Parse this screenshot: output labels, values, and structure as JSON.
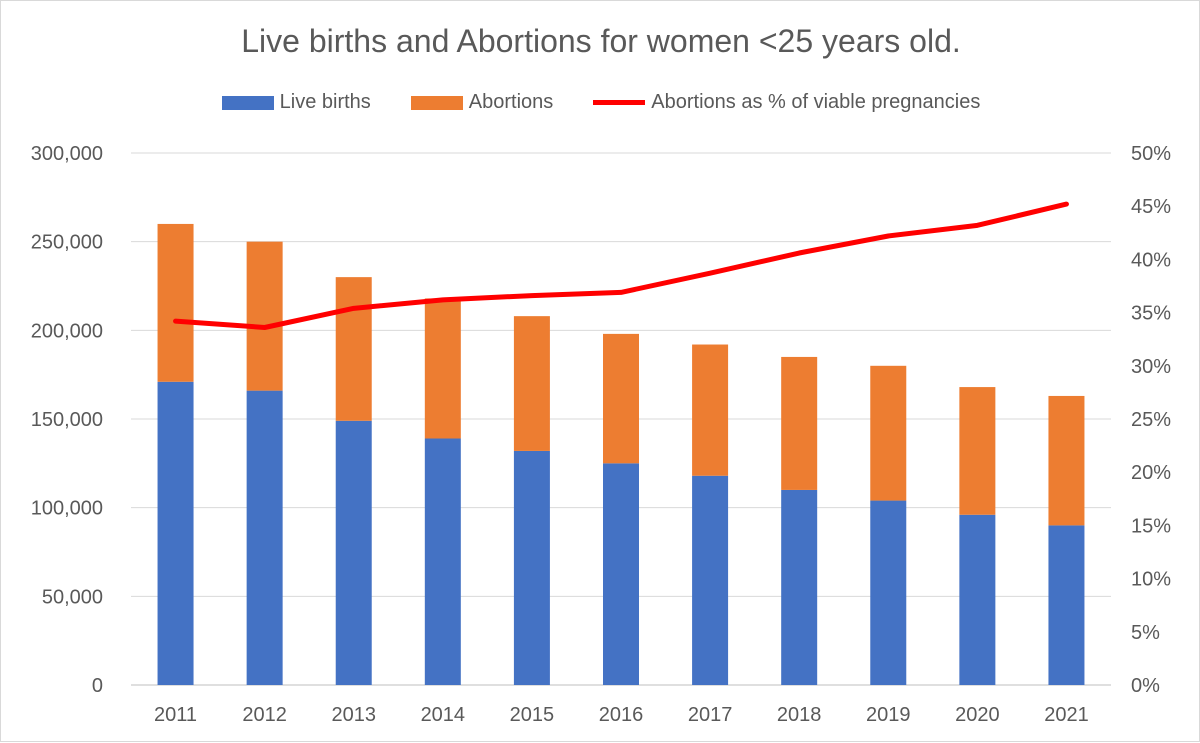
{
  "chart_data": {
    "type": "bar",
    "title": "Live births and Abortions for women <25 years old.",
    "categories": [
      "2011",
      "2012",
      "2013",
      "2014",
      "2015",
      "2016",
      "2017",
      "2018",
      "2019",
      "2020",
      "2021"
    ],
    "series": [
      {
        "name": "Live births",
        "type": "stacked-bar",
        "axis": "left",
        "color": "#4472C4",
        "values": [
          171000,
          166000,
          149000,
          139000,
          132000,
          125000,
          118000,
          110000,
          104000,
          96000,
          90000
        ]
      },
      {
        "name": "Abortions",
        "type": "stacked-bar",
        "axis": "left",
        "color": "#ED7D31",
        "values": [
          89000,
          84000,
          81000,
          79000,
          76000,
          73000,
          74000,
          75000,
          76000,
          72000,
          73000
        ]
      },
      {
        "name": "Abortions as % of viable pregnancies",
        "type": "line",
        "axis": "right",
        "color": "#FF0000",
        "values": [
          34.2,
          33.6,
          35.4,
          36.2,
          36.6,
          36.9,
          38.7,
          40.6,
          42.2,
          43.2,
          45.2
        ]
      }
    ],
    "left_axis": {
      "ylim": [
        0,
        300000
      ],
      "ticks": [
        "0",
        "50,000",
        "100,000",
        "150,000",
        "200,000",
        "250,000",
        "300,000"
      ]
    },
    "right_axis": {
      "ylim": [
        0,
        50
      ],
      "ticks": [
        "0%",
        "5%",
        "10%",
        "15%",
        "20%",
        "25%",
        "30%",
        "35%",
        "40%",
        "45%",
        "50%"
      ]
    },
    "grid": true,
    "legend": "top"
  }
}
